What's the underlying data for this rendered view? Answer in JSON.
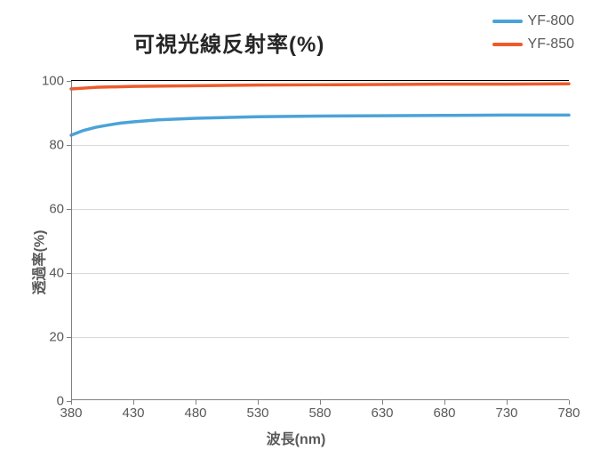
{
  "chart": {
    "type": "line",
    "title": "可視光線反射率(%)",
    "title_fontsize": 24,
    "title_color": "#262626",
    "xlabel": "波長(nm)",
    "ylabel": "透過率(%)",
    "label_fontsize": 16,
    "label_color": "#595959",
    "tick_fontsize": 15,
    "tick_color": "#595959",
    "background_color": "#ffffff",
    "plot_background": "#ffffff",
    "grid_color": "#d9d9d9",
    "axis_color": "#808080",
    "top_border_color": "#000000",
    "xlim": [
      380,
      780
    ],
    "ylim": [
      0,
      100
    ],
    "xticks": [
      380,
      430,
      480,
      530,
      580,
      630,
      680,
      730,
      780
    ],
    "yticks": [
      0,
      20,
      40,
      60,
      80,
      100
    ],
    "line_width": 3.5,
    "series": [
      {
        "name": "YF-800",
        "color": "#4ba3d8",
        "x": [
          380,
          390,
          400,
          410,
          420,
          430,
          450,
          480,
          530,
          580,
          630,
          680,
          730,
          780
        ],
        "y": [
          83,
          84.5,
          85.5,
          86.2,
          86.8,
          87.2,
          87.8,
          88.3,
          88.8,
          89.0,
          89.1,
          89.2,
          89.3,
          89.3
        ]
      },
      {
        "name": "YF-850",
        "color": "#ed5b2b",
        "x": [
          380,
          400,
          430,
          480,
          530,
          580,
          630,
          680,
          730,
          780
        ],
        "y": [
          97.5,
          98.0,
          98.3,
          98.5,
          98.7,
          98.8,
          98.9,
          99.0,
          99.0,
          99.1
        ]
      }
    ],
    "legend": {
      "position": "top-right",
      "items": [
        {
          "label": "YF-800",
          "color": "#4ba3d8"
        },
        {
          "label": "YF-850",
          "color": "#ed5b2b"
        }
      ],
      "fontsize": 16,
      "text_color": "#595959",
      "swatch_width": 34,
      "swatch_height": 4
    }
  }
}
